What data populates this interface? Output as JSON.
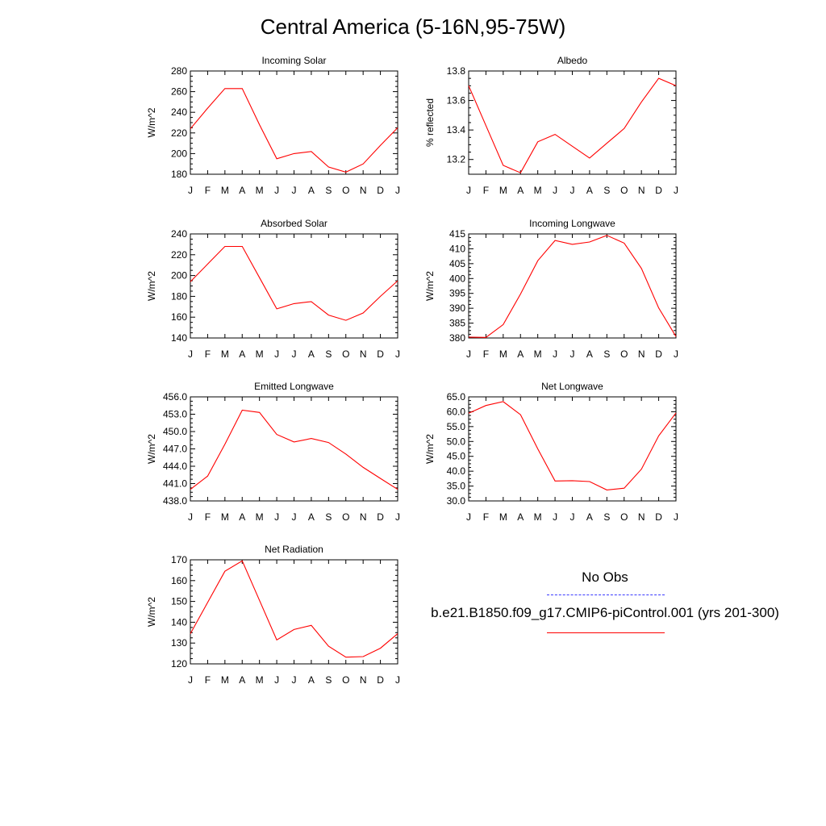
{
  "page": {
    "title": "Central America (5-16N,95-75W)"
  },
  "legend": {
    "obs_label": "No Obs",
    "obs_color": "#3a3aff",
    "model_label": "b.e21.B1850.f09_g17.CMIP6-piControl.001 (yrs 201-300)",
    "model_color": "#ff0000"
  },
  "chart_data": [
    {
      "type": "line",
      "title": "Incoming Solar",
      "xlabel": "",
      "ylabel": "W/m^2",
      "categories": [
        "J",
        "F",
        "M",
        "A",
        "M",
        "J",
        "J",
        "A",
        "S",
        "O",
        "N",
        "D",
        "J"
      ],
      "ylim": [
        180,
        280
      ],
      "yticks": [
        180,
        200,
        220,
        240,
        260,
        280
      ],
      "ytick_labels": [
        "180",
        "200",
        "220",
        "240",
        "260",
        "280"
      ],
      "series": [
        {
          "values": [
            224,
            244,
            263,
            263,
            228,
            195,
            200,
            202,
            187,
            182,
            190,
            208,
            225
          ]
        }
      ],
      "grid": false
    },
    {
      "type": "line",
      "title": "Albedo",
      "xlabel": "",
      "ylabel": "% reflected",
      "categories": [
        "J",
        "F",
        "M",
        "A",
        "M",
        "J",
        "J",
        "A",
        "S",
        "O",
        "N",
        "D",
        "J"
      ],
      "ylim": [
        13.1,
        13.8
      ],
      "yticks": [
        13.2,
        13.4,
        13.6,
        13.8
      ],
      "ytick_labels": [
        "13.2",
        "13.4",
        "13.6",
        "13.8"
      ],
      "series": [
        {
          "values": [
            13.7,
            13.43,
            13.16,
            13.11,
            13.32,
            13.37,
            13.29,
            13.21,
            13.31,
            13.41,
            13.59,
            13.75,
            13.7
          ]
        }
      ],
      "grid": false
    },
    {
      "type": "line",
      "title": "Absorbed Solar",
      "xlabel": "",
      "ylabel": "W/m^2",
      "categories": [
        "J",
        "F",
        "M",
        "A",
        "M",
        "J",
        "J",
        "A",
        "S",
        "O",
        "N",
        "D",
        "J"
      ],
      "ylim": [
        140,
        240
      ],
      "yticks": [
        140,
        160,
        180,
        200,
        220,
        240
      ],
      "ytick_labels": [
        "140",
        "160",
        "180",
        "200",
        "220",
        "240"
      ],
      "series": [
        {
          "values": [
            194,
            211,
            228,
            228,
            198,
            168,
            173,
            175,
            162,
            157,
            164,
            180,
            195
          ]
        }
      ],
      "grid": false
    },
    {
      "type": "line",
      "title": "Incoming Longwave",
      "xlabel": "",
      "ylabel": "W/m^2",
      "categories": [
        "J",
        "F",
        "M",
        "A",
        "M",
        "J",
        "J",
        "A",
        "S",
        "O",
        "N",
        "D",
        "J"
      ],
      "ylim": [
        380,
        415
      ],
      "yticks": [
        380,
        385,
        390,
        395,
        400,
        405,
        410,
        415
      ],
      "ytick_labels": [
        "380",
        "385",
        "390",
        "395",
        "400",
        "405",
        "410",
        "415"
      ],
      "series": [
        {
          "values": [
            380.3,
            380.2,
            384.5,
            394.8,
            406.0,
            412.8,
            411.5,
            412.3,
            414.5,
            411.9,
            403.4,
            390.1,
            380.5
          ]
        }
      ],
      "grid": false
    },
    {
      "type": "line",
      "title": "Emitted Longwave",
      "xlabel": "",
      "ylabel": "W/m^2",
      "categories": [
        "J",
        "F",
        "M",
        "A",
        "M",
        "J",
        "J",
        "A",
        "S",
        "O",
        "N",
        "D",
        "J"
      ],
      "ylim": [
        438,
        456
      ],
      "yticks": [
        438,
        441,
        444,
        447,
        450,
        453,
        456
      ],
      "ytick_labels": [
        "438.0",
        "441.0",
        "444.0",
        "447.0",
        "450.0",
        "453.0",
        "456.0"
      ],
      "series": [
        {
          "values": [
            440.0,
            442.3,
            447.8,
            453.7,
            453.3,
            449.5,
            448.2,
            448.8,
            448.1,
            446.1,
            443.8,
            441.9,
            440.0
          ]
        }
      ],
      "grid": false
    },
    {
      "type": "line",
      "title": "Net Longwave",
      "xlabel": "",
      "ylabel": "W/m^2",
      "categories": [
        "J",
        "F",
        "M",
        "A",
        "M",
        "J",
        "J",
        "A",
        "S",
        "O",
        "N",
        "D",
        "J"
      ],
      "ylim": [
        30,
        65
      ],
      "yticks": [
        30,
        35,
        40,
        45,
        50,
        55,
        60,
        65
      ],
      "ytick_labels": [
        "30.0",
        "35.0",
        "40.0",
        "45.0",
        "50.0",
        "55.0",
        "60.0",
        "65.0"
      ],
      "series": [
        {
          "values": [
            59.5,
            62.1,
            63.4,
            59.0,
            47.5,
            36.7,
            36.8,
            36.5,
            33.7,
            34.3,
            40.7,
            51.9,
            59.6
          ]
        }
      ],
      "grid": false
    },
    {
      "type": "line",
      "title": "Net Radiation",
      "xlabel": "",
      "ylabel": "W/m^2",
      "categories": [
        "J",
        "F",
        "M",
        "A",
        "M",
        "J",
        "J",
        "A",
        "S",
        "O",
        "N",
        "D",
        "J"
      ],
      "ylim": [
        120,
        170
      ],
      "yticks": [
        120,
        130,
        140,
        150,
        160,
        170
      ],
      "ytick_labels": [
        "120",
        "130",
        "140",
        "150",
        "160",
        "170"
      ],
      "series": [
        {
          "values": [
            134.5,
            149.5,
            164.5,
            169.5,
            150.5,
            131.5,
            136.5,
            138.5,
            128.5,
            123.2,
            123.5,
            127.5,
            134.5
          ]
        }
      ],
      "grid": false
    }
  ]
}
